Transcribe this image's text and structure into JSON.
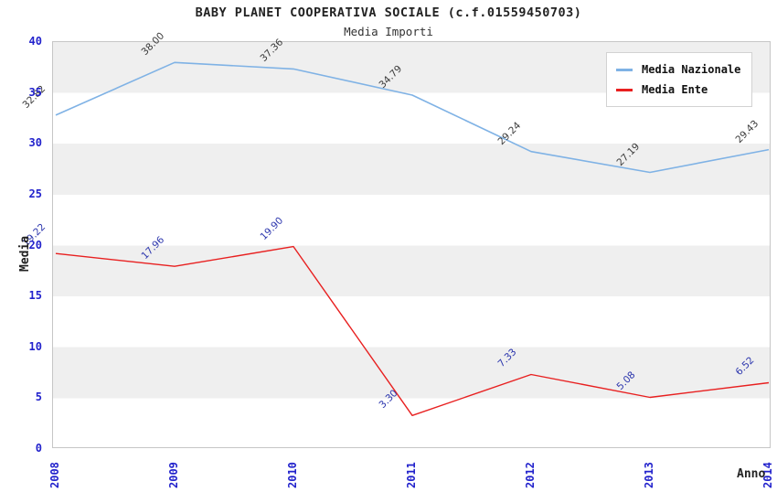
{
  "header": {
    "title": "BABY PLANET COOPERATIVA SOCIALE (c.f.01559450703)",
    "subtitle": "Media Importi"
  },
  "legend": {
    "items": [
      {
        "label": "Media Nazionale",
        "color": "#7fb2e5"
      },
      {
        "label": "Media Ente",
        "color": "#e82020"
      }
    ]
  },
  "axes": {
    "y_title": "Media",
    "x_title": "Anno",
    "y_ticks": [
      "0",
      "5",
      "10",
      "15",
      "20",
      "25",
      "30",
      "35",
      "40"
    ],
    "x_ticks": [
      "2008",
      "2009",
      "2010",
      "2011",
      "2012",
      "2013",
      "2014"
    ],
    "tick_color": "#2222cc"
  },
  "chart_data": {
    "type": "line",
    "title": "BABY PLANET COOPERATIVA SOCIALE (c.f.01559450703)",
    "subtitle": "Media Importi",
    "xlabel": "Anno",
    "ylabel": "Media",
    "x": [
      2008,
      2009,
      2010,
      2011,
      2012,
      2013,
      2014
    ],
    "series": [
      {
        "name": "Media Nazionale",
        "color": "#7fb2e5",
        "label_color": "#3a3a3a",
        "values": [
          32.82,
          38.0,
          37.36,
          34.79,
          29.24,
          27.19,
          29.43
        ]
      },
      {
        "name": "Media Ente",
        "color": "#e82020",
        "label_color": "#2b35ad",
        "values": [
          19.22,
          17.96,
          19.9,
          3.3,
          7.33,
          5.08,
          6.52
        ]
      }
    ],
    "ylim": [
      0,
      40
    ],
    "y_tick_step": 5,
    "grid": "horizontal-bands",
    "band_colors": [
      "#efefef",
      "#ffffff"
    ],
    "legend_position": "top-right",
    "value_label_decimals": 2
  }
}
